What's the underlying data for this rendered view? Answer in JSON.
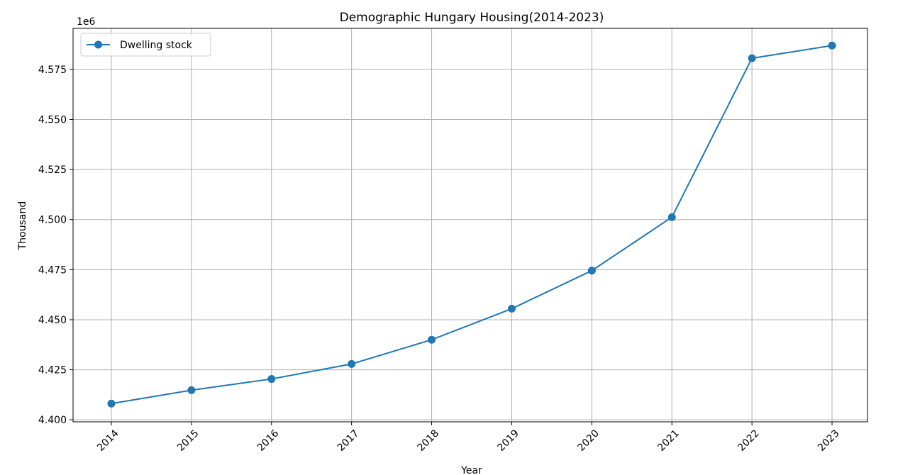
{
  "chart_data": {
    "type": "line",
    "title": "Demographic Hungary Housing(2014-2023)",
    "xlabel": "Year",
    "ylabel": "Thousand",
    "y_offset_label": "1e6",
    "ylim": [
      4.399,
      4.5955
    ],
    "y_tick_labels": [
      "4.400",
      "4.425",
      "4.450",
      "4.475",
      "4.500",
      "4.525",
      "4.550",
      "4.575"
    ],
    "categories": [
      "2014",
      "2015",
      "2016",
      "2017",
      "2018",
      "2019",
      "2020",
      "2021",
      "2022",
      "2023"
    ],
    "series": [
      {
        "name": "Dwelling stock",
        "color": "#1f77b4",
        "values": [
          4.4081,
          4.4148,
          4.4204,
          4.4279,
          4.44,
          4.4555,
          4.4745,
          4.5012,
          4.5806,
          4.5869
        ]
      }
    ],
    "grid": true,
    "legend_position": "top-left"
  }
}
